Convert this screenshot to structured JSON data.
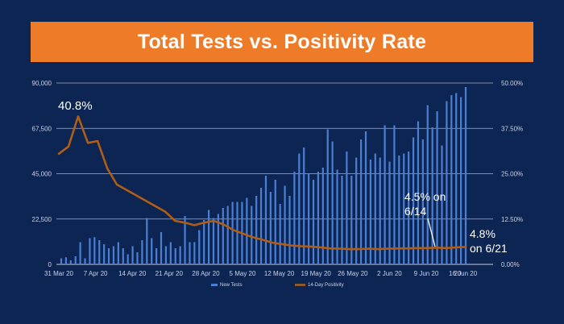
{
  "title": "Total Tests vs. Positivity Rate",
  "chart_data": {
    "type": "bar+line",
    "left_axis": {
      "ticks": [
        "0",
        "22,500",
        "45,000",
        "67,500",
        "90,000"
      ],
      "ylim": [
        0,
        90000
      ]
    },
    "right_axis": {
      "ticks": [
        "0.00%",
        "12.50%",
        "25.00%",
        "37.50%",
        "50.00%"
      ],
      "ylim": [
        0,
        50
      ]
    },
    "x_ticks": [
      "31 Mar 20",
      "7 Apr 20",
      "14 Apr 20",
      "21 Apr 20",
      "28 Apr 20",
      "5 May 20",
      "12 May 20",
      "19 May 20",
      "26 May 20",
      "2 Jun 20",
      "9 Jun 20",
      "16 Jun 20"
    ],
    "x_labels_tail": "20",
    "grid": true,
    "colors": {
      "bars": "#4a7fd4",
      "line": "#b05e16",
      "grid": "#d9dfea"
    },
    "series": [
      {
        "name": "New Tests",
        "type": "bar",
        "values": [
          3000,
          3500,
          2000,
          4000,
          11000,
          3000,
          13000,
          13500,
          12000,
          10000,
          8000,
          9000,
          11000,
          8000,
          5000,
          9000,
          6000,
          12000,
          23000,
          13000,
          8000,
          16000,
          9000,
          11000,
          8000,
          9000,
          24000,
          11000,
          11000,
          17000,
          22000,
          27000,
          23000,
          25000,
          28000,
          29000,
          31000,
          31000,
          31000,
          33000,
          29000,
          34000,
          38000,
          44000,
          36000,
          42000,
          30000,
          39000,
          34000,
          46000,
          55000,
          58000,
          45000,
          42000,
          46000,
          48000,
          67000,
          61000,
          47000,
          44000,
          56000,
          44000,
          53000,
          62000,
          66000,
          52000,
          55000,
          53000,
          69000,
          51000,
          69000,
          54000,
          55000,
          56000,
          63000,
          71000,
          62000,
          79000,
          68000,
          76000,
          59000,
          81000,
          84000,
          85000,
          83000,
          88000
        ]
      },
      {
        "name": "14-Day Positivity",
        "type": "line",
        "values": [
          30.5,
          32.5,
          40.8,
          33.5,
          34.0,
          26.5,
          22.0,
          20.5,
          19.0,
          17.5,
          16.0,
          14.5,
          12.0,
          11.5,
          10.8,
          11.5,
          12.0,
          11.0,
          9.5,
          8.5,
          7.5,
          6.8,
          6.0,
          5.6,
          5.2,
          5.0,
          4.9,
          4.7,
          4.4,
          4.3,
          4.2,
          4.2,
          4.3,
          4.2,
          4.3,
          4.4,
          4.4,
          4.5,
          4.5,
          4.6,
          4.5,
          4.7,
          4.8
        ]
      }
    ],
    "annotations": [
      {
        "text": "40.8%"
      },
      {
        "text_line1": "4.5% on",
        "text_line2": "6/14"
      },
      {
        "text_line1": "4.8%",
        "text_line2": "on 6/21"
      }
    ]
  }
}
